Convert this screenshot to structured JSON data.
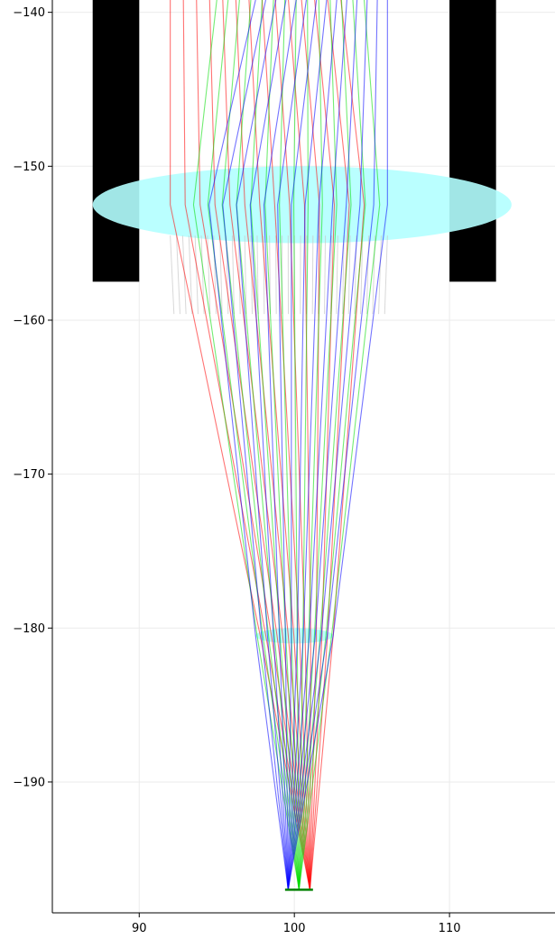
{
  "chart_data": {
    "type": "line",
    "title": "",
    "xlabel": "",
    "ylabel": "",
    "xlim": [
      84.4,
      116.8
    ],
    "ylim": [
      -198.5,
      -139.2
    ],
    "grid": true,
    "x_ticks": [
      90,
      100,
      110
    ],
    "y_ticks": [
      -140,
      -150,
      -160,
      -170,
      -180,
      -190
    ],
    "x_tick_labels": [
      "90",
      "100",
      "110"
    ],
    "y_tick_labels": [
      "−140",
      "−150",
      "−160",
      "−170",
      "−180",
      "−190"
    ],
    "apertures": [
      {
        "x0": 87.0,
        "x1": 90.0,
        "y_top": -139.2,
        "y_bottom": -157.5,
        "color": "#000000"
      },
      {
        "x0": 110.0,
        "x1": 113.0,
        "y_top": -139.2,
        "y_bottom": -157.5,
        "color": "#000000"
      }
    ],
    "lenses": [
      {
        "cx": 100.5,
        "cy": -152.5,
        "rx": 13.5,
        "ry": 2.5,
        "color": "#b3ffff"
      },
      {
        "cx": 100.0,
        "cy": -180.5,
        "rx": 2.5,
        "ry": 0.5,
        "color": "#b3ffff"
      }
    ],
    "detector": {
      "x0": 99.4,
      "x1": 101.2,
      "y": -197.0,
      "color": "#008000"
    },
    "ray_groups": [
      {
        "color": "#ff0000",
        "x_top_start": 92.0,
        "x_top_end": 103.0,
        "x_lens": [
          92.0,
          104.5
        ],
        "x_lens2": [
          97.8,
          102.5
        ],
        "focus_x": 101.0
      },
      {
        "color": "#00dd00",
        "x_top_start": 95.0,
        "x_top_end": 104.5,
        "x_lens": [
          93.5,
          105.5
        ],
        "x_lens2": [
          97.6,
          102.4
        ],
        "focus_x": 100.3
      },
      {
        "color": "#0000ff",
        "x_top_start": 97.5,
        "x_top_end": 106.0,
        "x_lens": [
          94.5,
          106.0
        ],
        "x_lens2": [
          97.5,
          102.5
        ],
        "focus_x": 99.6
      }
    ],
    "stray_rays": {
      "color": "#c8c8c8",
      "x_range": [
        92.0,
        106.0
      ],
      "y_start": -154.5,
      "y_end": -159.6
    }
  }
}
